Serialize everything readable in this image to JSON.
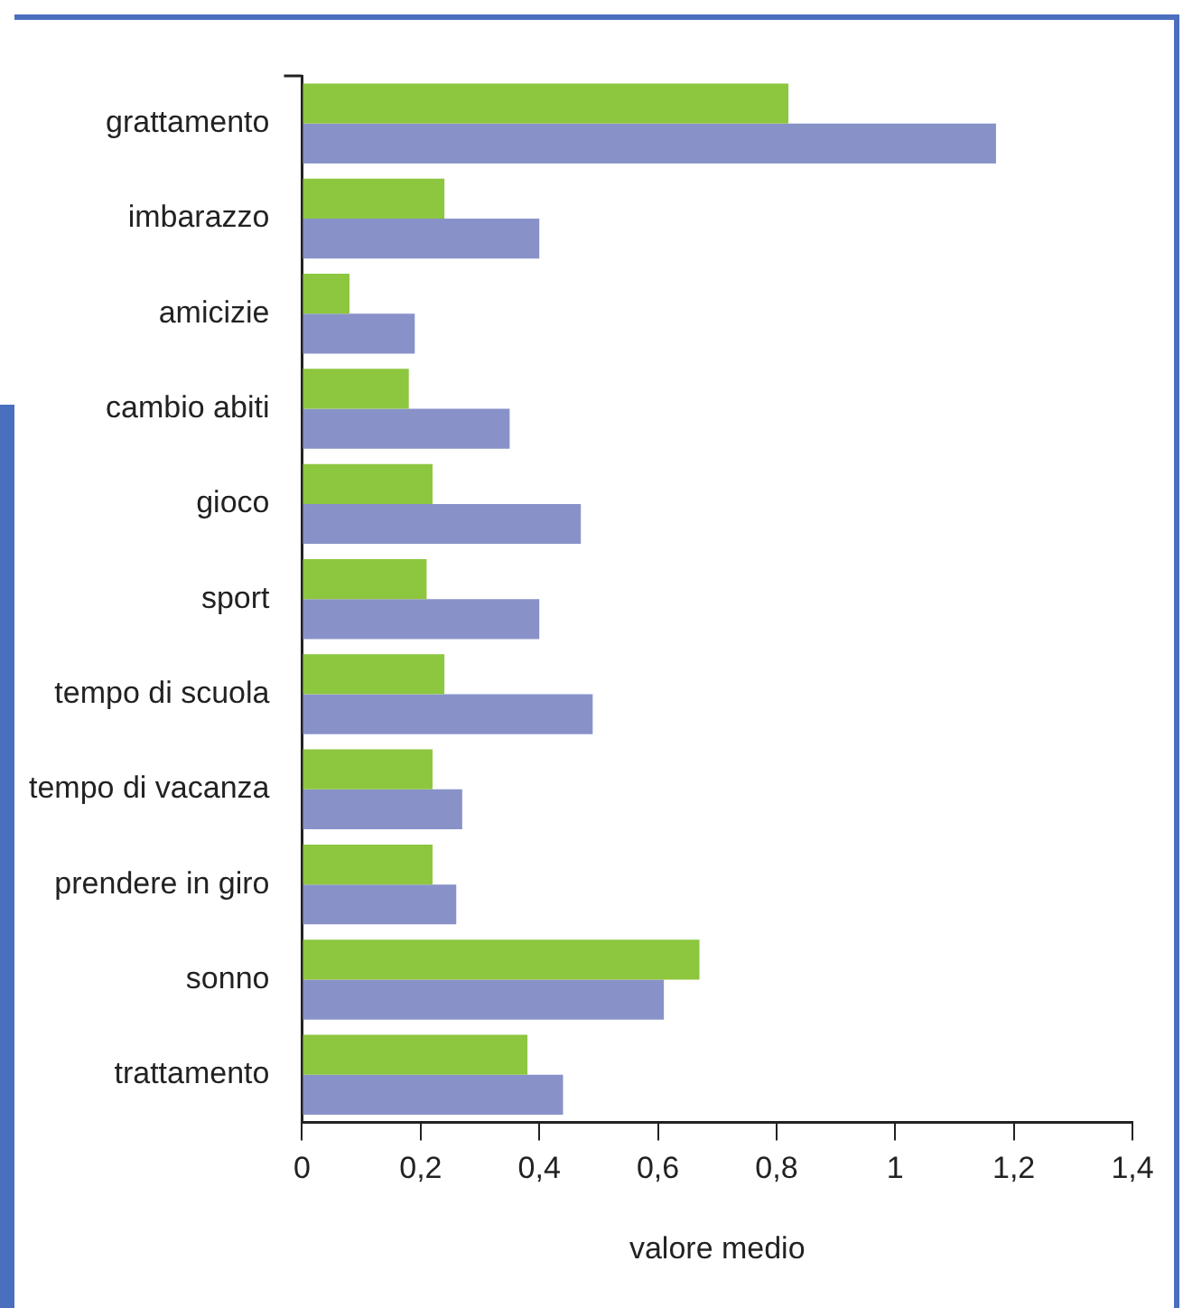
{
  "chart_data": {
    "type": "bar",
    "orientation": "horizontal",
    "xlabel": "valore medio",
    "categories": [
      "grattamento",
      "imbarazzo",
      "amicizie",
      "cambio abiti",
      "gioco",
      "sport",
      "tempo di scuola",
      "tempo di vacanza",
      "prendere in giro",
      "sonno",
      "trattamento"
    ],
    "series": [
      {
        "color": "#8dc63f",
        "values": [
          0.82,
          0.24,
          0.08,
          0.18,
          0.22,
          0.21,
          0.24,
          0.22,
          0.22,
          0.67,
          0.38
        ]
      },
      {
        "color": "#8892c9",
        "values": [
          1.17,
          0.4,
          0.19,
          0.35,
          0.47,
          0.4,
          0.49,
          0.27,
          0.26,
          0.61,
          0.44
        ]
      }
    ],
    "xlim": [
      0,
      1.4
    ],
    "xticks": [
      {
        "value": 0,
        "label": "0"
      },
      {
        "value": 0.2,
        "label": "0,2"
      },
      {
        "value": 0.4,
        "label": "0,4"
      },
      {
        "value": 0.6,
        "label": "0,6"
      },
      {
        "value": 0.8,
        "label": "0,8"
      },
      {
        "value": 1,
        "label": "1"
      },
      {
        "value": 1.2,
        "label": "1,2"
      },
      {
        "value": 1.4,
        "label": "1,4"
      }
    ],
    "grid": false,
    "legend": false
  }
}
